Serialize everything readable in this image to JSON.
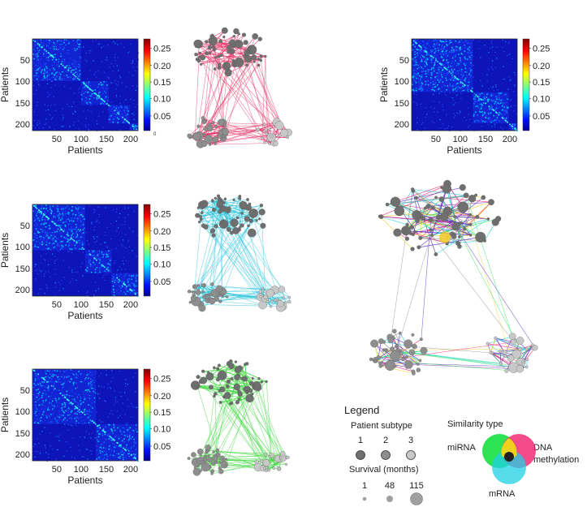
{
  "heatmaps": [
    {
      "id": "mirna",
      "xlabel": "Patients",
      "ylabel": "Patients",
      "xticks": [
        "50",
        "100",
        "150",
        "200"
      ],
      "yticks": [
        "50",
        "100",
        "150",
        "200"
      ],
      "cbar_ticks": [
        "0.25",
        "0.20",
        "0.15",
        "0.10",
        "0.05",
        "0"
      ],
      "cmap": [
        "#000080",
        "#0000ff",
        "#00ffff",
        "#ffff00",
        "#ff0000",
        "#800000"
      ]
    },
    {
      "id": "mrna",
      "xlabel": "Patients",
      "ylabel": "Patients",
      "xticks": [
        "50",
        "100",
        "150",
        "200"
      ],
      "yticks": [
        "50",
        "100",
        "150",
        "200"
      ],
      "cbar_ticks": [
        "0.25",
        "0.20",
        "0.15",
        "0.10",
        "0.05"
      ]
    },
    {
      "id": "methylation",
      "xlabel": "Patients",
      "ylabel": "Patients",
      "xticks": [
        "50",
        "100",
        "150",
        "200"
      ],
      "yticks": [
        "50",
        "100",
        "150",
        "200"
      ],
      "cbar_ticks": [
        "0.25",
        "0.20",
        "0.15",
        "0.10",
        "0.05"
      ]
    },
    {
      "id": "fused",
      "xlabel": "Patients",
      "ylabel": "Patients",
      "xticks": [
        "50",
        "100",
        "150",
        "200"
      ],
      "yticks": [
        "50",
        "100",
        "150",
        "200"
      ],
      "cbar_ticks": [
        "0.25",
        "0.20",
        "0.15",
        "0.10",
        "0.05"
      ]
    }
  ],
  "networks": {
    "colors": {
      "mirna": "#e8366a",
      "mrna": "#2bc4dc",
      "methylation": "#3cd83c"
    },
    "node_colors": {
      "subtype_1": "#6f6f6f",
      "subtype_2": "#8e8e8e",
      "subtype_3": "#c8c8c8"
    }
  },
  "legend": {
    "title": "Legend",
    "subtype_title": "Patient subtype",
    "subtype_labels": [
      "1",
      "2",
      "3"
    ],
    "survival_title": "Survival (months)",
    "survival_labels": [
      "1",
      "48",
      "115"
    ],
    "similarity_title": "Similarity type",
    "venn_labels": {
      "left": "miRNA",
      "right_line1": "DNA",
      "right_line2": "methylation",
      "bottom": "mRNA"
    },
    "venn_colors": {
      "green": "#22e04a",
      "red": "#f01e6e",
      "cyan": "#1ed2e6",
      "yellow": "#f0d21e",
      "blue": "#4a22c8",
      "purple": "#8c2ab4",
      "black": "#222222"
    }
  }
}
